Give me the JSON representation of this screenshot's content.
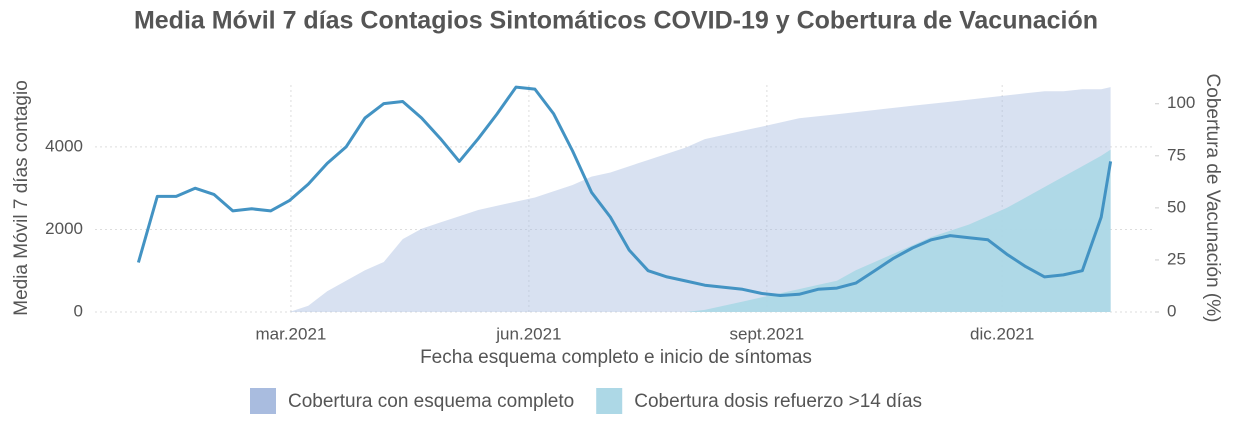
{
  "chart_data": {
    "type": "line",
    "title": "Media Móvil 7 días Contagios Sintomáticos COVID-19 y Cobertura de Vacunación",
    "xlabel": "Fecha esquema completo e inicio de síntomas",
    "ylabel": "Media Móvil 7 días contagio",
    "y2label": "Cobertura de Vacunación (%)",
    "x": [
      2021.0,
      2021.02,
      2021.04,
      2021.06,
      2021.08,
      2021.1,
      2021.12,
      2021.14,
      2021.16,
      2021.18,
      2021.2,
      2021.22,
      2021.24,
      2021.26,
      2021.28,
      2021.3,
      2021.32,
      2021.34,
      2021.36,
      2021.38,
      2021.4,
      2021.42,
      2021.44,
      2021.46,
      2021.48,
      2021.5,
      2021.52,
      2021.54,
      2021.56,
      2021.58,
      2021.6,
      2021.62,
      2021.64,
      2021.66,
      2021.68,
      2021.7,
      2021.72,
      2021.74,
      2021.76,
      2021.78,
      2021.8,
      2021.82,
      2021.84,
      2021.86,
      2021.88,
      2021.9,
      2021.92,
      2021.94,
      2021.96,
      2021.98,
      2022.0,
      2022.02,
      2022.03
    ],
    "xlim": [
      2020.954,
      2022.077
    ],
    "xticks": [
      {
        "value": 2021.1616,
        "label": "mar.2021"
      },
      {
        "value": 2021.4137,
        "label": "jun.2021"
      },
      {
        "value": 2021.6658,
        "label": "sept.2021"
      },
      {
        "value": 2021.9151,
        "label": "dic.2021"
      }
    ],
    "ylim": [
      0,
      5500
    ],
    "yticks": [
      0,
      2000,
      4000
    ],
    "y2lim": [
      0,
      109
    ],
    "y2ticks": [
      0,
      25,
      50,
      75,
      100
    ],
    "grid": true,
    "legend": "bottom",
    "series": [
      {
        "name": "Cobertura con esquema completo",
        "type": "area",
        "axis": "y2",
        "color": "#a9bcdf",
        "values": [
          0,
          0,
          0,
          0,
          0,
          0,
          0,
          0,
          0,
          3,
          10,
          15,
          20,
          24,
          35,
          40,
          43,
          46,
          49,
          51,
          53,
          55,
          58,
          61,
          65,
          67,
          70,
          73,
          76,
          79,
          83,
          85,
          87,
          89,
          91,
          93,
          94,
          95,
          96,
          97,
          98,
          99,
          100,
          101,
          102,
          103,
          104,
          105,
          106,
          106,
          107,
          107,
          108
        ]
      },
      {
        "name": "Cobertura dosis refuerzo >14 días",
        "type": "area",
        "axis": "y2",
        "color": "#add8e6",
        "values": [
          0,
          0,
          0,
          0,
          0,
          0,
          0,
          0,
          0,
          0,
          0,
          0,
          0,
          0,
          0,
          0,
          0,
          0,
          0,
          0,
          0,
          0,
          0,
          0,
          0,
          0,
          0,
          0,
          0,
          0,
          1,
          3,
          5,
          7,
          9,
          11,
          13,
          15,
          20,
          24,
          28,
          32,
          36,
          39,
          42,
          46,
          50,
          55,
          60,
          65,
          70,
          75,
          78
        ]
      },
      {
        "type": "line",
        "color": "#4393c3",
        "values": [
          1200,
          2800,
          2800,
          3000,
          2850,
          2450,
          2500,
          2450,
          2700,
          3100,
          3600,
          4000,
          4700,
          5050,
          5100,
          4700,
          4200,
          3650,
          4200,
          4800,
          5450,
          5400,
          4800,
          3900,
          2900,
          2300,
          1500,
          1000,
          850,
          750,
          650,
          600,
          550,
          450,
          400,
          430,
          550,
          580,
          700,
          1000,
          1300,
          1550,
          1750,
          1850,
          1800,
          1750,
          1400,
          1100,
          850,
          900,
          1000,
          2300,
          3650
        ]
      }
    ]
  }
}
